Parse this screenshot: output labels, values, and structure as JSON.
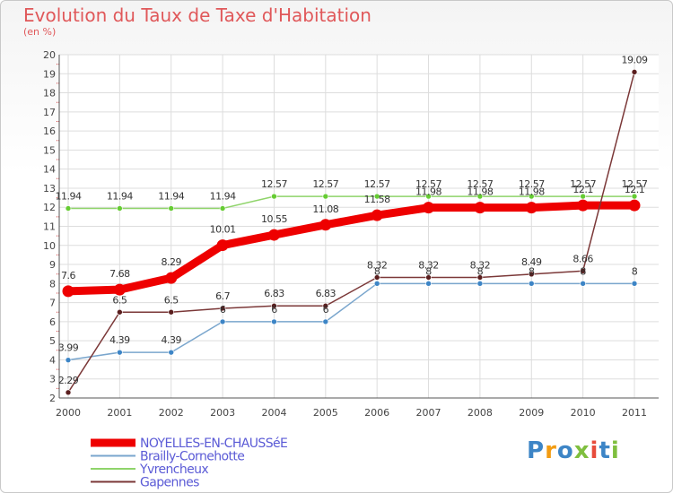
{
  "chart_data": {
    "type": "line",
    "title": "Evolution du Taux de Taxe d'Habitation",
    "subtitle": "(en %)",
    "x": [
      "2000",
      "2001",
      "2002",
      "2003",
      "2004",
      "2005",
      "2006",
      "2007",
      "2008",
      "2009",
      "2010",
      "2011"
    ],
    "ylim": [
      2,
      20
    ],
    "yticks": [
      2,
      3,
      4,
      5,
      6,
      7,
      8,
      9,
      10,
      11,
      12,
      13,
      14,
      15,
      16,
      17,
      18,
      19,
      20
    ],
    "grid": true,
    "legend_position": "bottom-left",
    "series": [
      {
        "name": "NOYELLES-EN-CHAUSSéE",
        "color": "#ee0000",
        "width": 9,
        "marker_color": "#ee0000",
        "values": [
          7.6,
          7.68,
          8.29,
          10.01,
          10.55,
          11.08,
          11.58,
          11.98,
          11.98,
          11.98,
          12.1,
          12.1
        ],
        "labels": [
          "7.6",
          "7.68",
          "8.29",
          "10.01",
          "10.55",
          "11.08",
          "11.58",
          "11.98",
          "11.98",
          "11.98",
          "12.1",
          "12.1"
        ]
      },
      {
        "name": "Brailly-Cornehotte",
        "color": "#7aa6cd",
        "width": 1.5,
        "marker_color": "#3d85c6",
        "values": [
          3.99,
          4.39,
          4.39,
          6,
          6,
          6,
          8,
          8,
          8,
          8,
          8,
          8
        ],
        "labels": [
          "3.99",
          "4.39",
          "4.39",
          "6",
          "6",
          "6",
          "8",
          "8",
          "8",
          "8",
          "8",
          "8"
        ]
      },
      {
        "name": "Yvrencheux",
        "color": "#8fd46a",
        "width": 1.5,
        "marker_color": "#66cc33",
        "values": [
          11.94,
          11.94,
          11.94,
          11.94,
          12.57,
          12.57,
          12.57,
          12.57,
          12.57,
          12.57,
          12.57,
          12.57
        ],
        "labels": [
          "11.94",
          "11.94",
          "11.94",
          "11.94",
          "12.57",
          "12.57",
          "12.57",
          "12.57",
          "12.57",
          "12.57",
          "12.57",
          "12.57"
        ]
      },
      {
        "name": "Gapennes",
        "color": "#7b3838",
        "width": 1.5,
        "marker_color": "#5a1e1e",
        "values": [
          2.29,
          6.5,
          6.5,
          6.7,
          6.83,
          6.83,
          8.32,
          8.32,
          8.32,
          8.49,
          8.66,
          19.09
        ],
        "labels": [
          "2.29",
          "6.5",
          "6.5",
          "6.7",
          "6.83",
          "6.83",
          "8.32",
          "8.32",
          "8.32",
          "8.49",
          "8.66",
          "19.09"
        ]
      }
    ],
    "label_order": [
      2,
      1,
      3,
      0
    ],
    "logo": {
      "text": "Proxiti",
      "colors": [
        "#3d85c6",
        "#f39c12",
        "#3d85c6",
        "#7fbf3f",
        "#e74c3c",
        "#3d85c6",
        "#7fbf3f"
      ]
    }
  }
}
